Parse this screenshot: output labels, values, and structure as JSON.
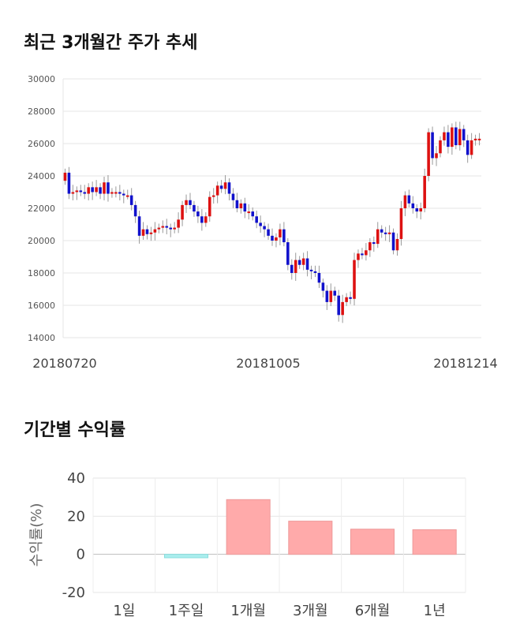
{
  "sections": {
    "price_title": "최근 3개월간 주가 추세",
    "returns_title": "기간별 수익률"
  },
  "chart_data": [
    {
      "type": "candlestick",
      "title": "최근 3개월간 주가 추세",
      "ylim": [
        14000,
        30000
      ],
      "yticks": [
        "30000",
        "28000",
        "26000",
        "24000",
        "22000",
        "20000",
        "18000",
        "16000",
        "14000"
      ],
      "date_labels": [
        "20180720",
        "20181005",
        "20181214"
      ],
      "up_color": "#dd1111",
      "down_color": "#1111cc",
      "closes": [
        24200,
        22900,
        23000,
        23100,
        23000,
        22900,
        23300,
        23000,
        23300,
        22900,
        23600,
        22900,
        23000,
        23000,
        22900,
        22800,
        22800,
        22200,
        21500,
        20300,
        20700,
        20400,
        20500,
        20700,
        20800,
        20900,
        20800,
        20700,
        20800,
        21300,
        22200,
        22500,
        22200,
        21800,
        21500,
        21100,
        21500,
        22700,
        22800,
        23400,
        23200,
        23600,
        22900,
        22500,
        22000,
        22300,
        21800,
        21800,
        21500,
        21100,
        20900,
        20700,
        20300,
        20000,
        20200,
        20700,
        19900,
        18500,
        18000,
        18800,
        18500,
        18900,
        18200,
        18100,
        18000,
        17400,
        16900,
        16200,
        16900,
        16600,
        15400,
        16200,
        16500,
        16400,
        18800,
        19200,
        19100,
        19400,
        19900,
        19800,
        20700,
        20500,
        20400,
        20500,
        19400,
        20100,
        22000,
        22800,
        22300,
        22000,
        21800,
        22000,
        24000,
        26700,
        25100,
        25400,
        26200,
        26700,
        25800,
        27000,
        25900,
        26900,
        26200,
        25300,
        26200,
        26300,
        26300
      ],
      "returns_chart": null
    },
    {
      "type": "bar",
      "title": "기간별 수익률",
      "categories": [
        "1일",
        "1주일",
        "1개월",
        "3개월",
        "6개월",
        "1년"
      ],
      "values": [
        0,
        -1.8,
        28.7,
        17.4,
        13.2,
        12.9
      ],
      "ylabel": "수익률(%)",
      "ylim": [
        -20,
        40
      ],
      "yticks": [
        "40",
        "20",
        "0",
        "-20"
      ],
      "positive_color": "#ffaaaa",
      "negative_color": "#aaeeee"
    }
  ]
}
